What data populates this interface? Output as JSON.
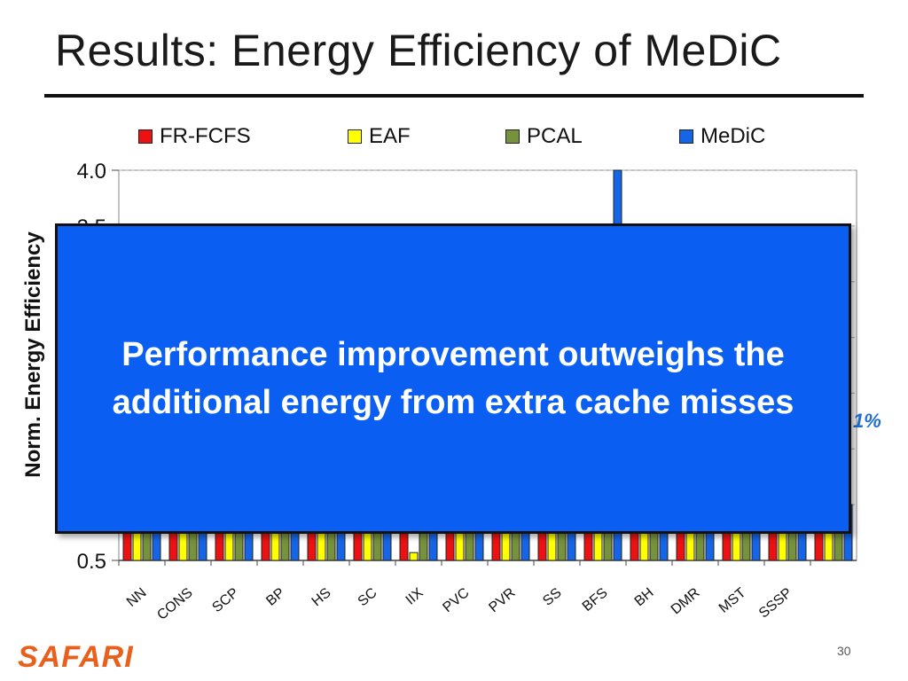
{
  "slide": {
    "title": "Results: Energy Efficiency of MeDiC",
    "overlay_text_line1": "Performance improvement outweighs the",
    "overlay_text_line2": "additional energy from extra cache misses",
    "side_note": "1%",
    "logo": "SAFARI",
    "page_number": "30"
  },
  "colors": {
    "FR-FCFS": "#ee1111",
    "EAF": "#ffff00",
    "PCAL": "#76923c",
    "MeDiC": "#1565e8",
    "overlay": "#0a5ff2"
  },
  "chart_data": {
    "type": "bar",
    "title": "",
    "xlabel": "",
    "ylabel": "Norm. Energy Efficiency",
    "ylim": [
      0.5,
      4.0
    ],
    "yticks_visible": [
      "4.0",
      "3.5",
      "0.5"
    ],
    "grid": true,
    "legend_position": "top",
    "categories": [
      "NN",
      "CONS",
      "SCP",
      "BP",
      "HS",
      "SC",
      "IIX",
      "PVC",
      "PVR",
      "SS",
      "BFS",
      "BH",
      "DMR",
      "MST",
      "SSSP",
      ""
    ],
    "series": [
      {
        "name": "FR-FCFS",
        "values": [
          1.0,
          1.0,
          1.0,
          1.0,
          1.0,
          1.0,
          1.0,
          1.0,
          1.0,
          1.0,
          1.0,
          1.0,
          1.0,
          1.0,
          1.0,
          1.0
        ]
      },
      {
        "name": "EAF",
        "values": [
          1.0,
          1.0,
          1.0,
          1.0,
          1.0,
          1.0,
          0.57,
          1.0,
          1.0,
          1.0,
          1.0,
          1.0,
          1.0,
          1.0,
          1.0,
          1.0
        ]
      },
      {
        "name": "PCAL",
        "values": [
          1.0,
          1.0,
          1.0,
          1.0,
          1.0,
          1.0,
          1.0,
          1.0,
          1.0,
          1.0,
          1.0,
          1.0,
          1.0,
          1.0,
          1.0,
          1.0
        ]
      },
      {
        "name": "MeDiC",
        "values": [
          1.0,
          1.0,
          1.0,
          1.0,
          1.0,
          1.0,
          1.0,
          1.0,
          1.0,
          1.0,
          4.0,
          1.0,
          1.0,
          1.0,
          1.0,
          1.0
        ]
      }
    ]
  }
}
